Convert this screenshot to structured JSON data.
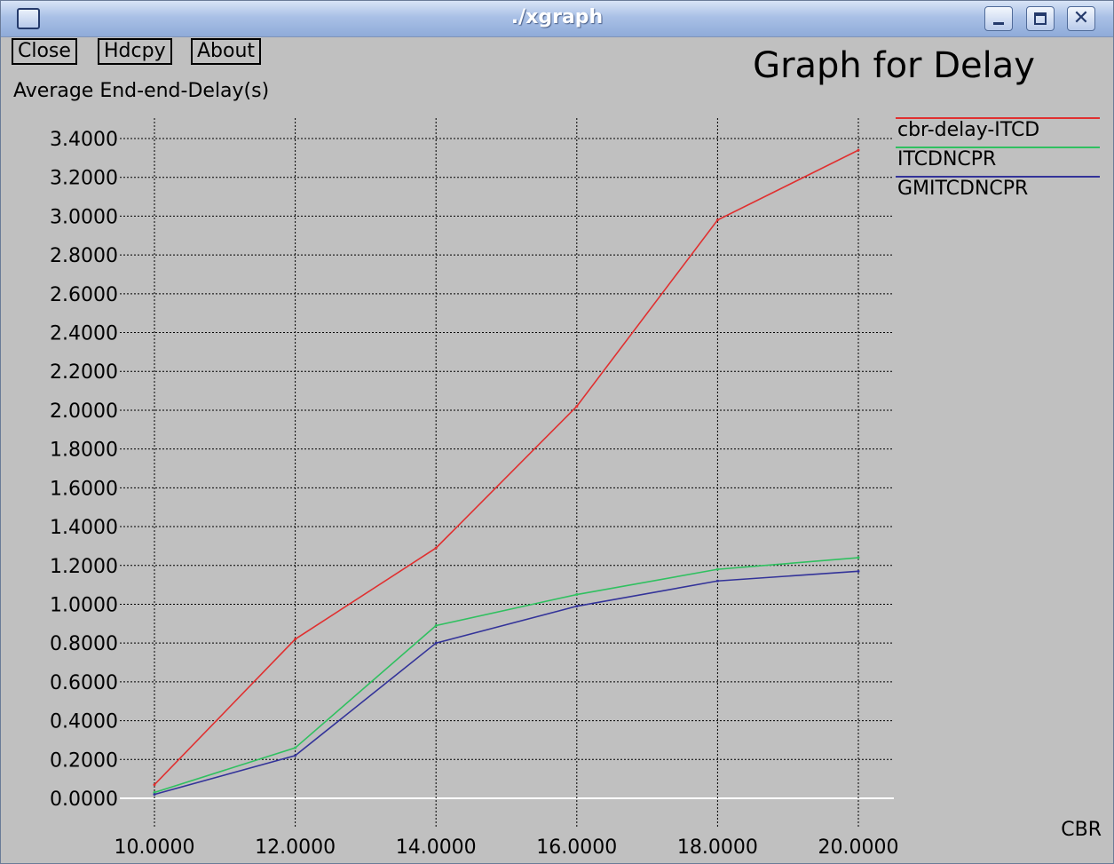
{
  "window": {
    "title": "./xgraph"
  },
  "toolbar": {
    "close_label": "Close",
    "hdcpy_label": "Hdcpy",
    "about_label": "About"
  },
  "chart_data": {
    "type": "line",
    "title": "Graph for Delay",
    "ylabel": "Average End-end-Delay(s)",
    "xlabel": "CBR",
    "xlim": [
      10,
      20
    ],
    "ylim": [
      0,
      3.4
    ],
    "x_ticks": [
      "10.0000",
      "12.0000",
      "14.0000",
      "16.0000",
      "18.0000",
      "20.0000"
    ],
    "y_ticks": [
      "3.4000",
      "3.2000",
      "3.0000",
      "2.8000",
      "2.6000",
      "2.4000",
      "2.2000",
      "2.0000",
      "1.8000",
      "1.6000",
      "1.4000",
      "1.2000",
      "1.0000",
      "0.8000",
      "0.6000",
      "0.4000",
      "0.2000",
      "0.0000"
    ],
    "grid": true,
    "legend_position": "right",
    "x": [
      10,
      12,
      14,
      16,
      18,
      20
    ],
    "series": [
      {
        "name": "cbr-delay-ITCD",
        "color": "#e03030",
        "values": [
          0.07,
          0.82,
          1.29,
          2.02,
          2.98,
          3.34
        ]
      },
      {
        "name": "ITCDNCPR",
        "color": "#30c060",
        "values": [
          0.03,
          0.26,
          0.89,
          1.05,
          1.18,
          1.24
        ]
      },
      {
        "name": "GMITCDNCPR",
        "color": "#333399",
        "values": [
          0.02,
          0.22,
          0.8,
          0.99,
          1.12,
          1.17
        ]
      }
    ]
  }
}
